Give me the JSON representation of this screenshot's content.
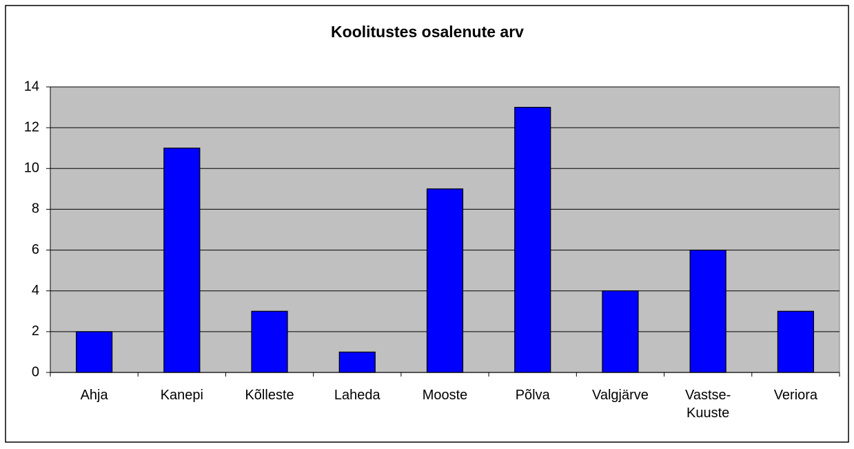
{
  "chart_data": {
    "type": "bar",
    "title": "Koolitustes osalenute arv",
    "categories": [
      "Ahja",
      "Kanepi",
      "Kõlleste",
      "Laheda",
      "Mooste",
      "Põlva",
      "Valgjärve",
      "Vastse-Kuuste",
      "Veriora"
    ],
    "values": [
      2,
      11,
      3,
      1,
      9,
      13,
      4,
      6,
      3
    ],
    "color": "#0000ff",
    "ylim": [
      0,
      14
    ],
    "yticks": [
      0,
      2,
      4,
      6,
      8,
      10,
      12,
      14
    ],
    "grid": true
  }
}
